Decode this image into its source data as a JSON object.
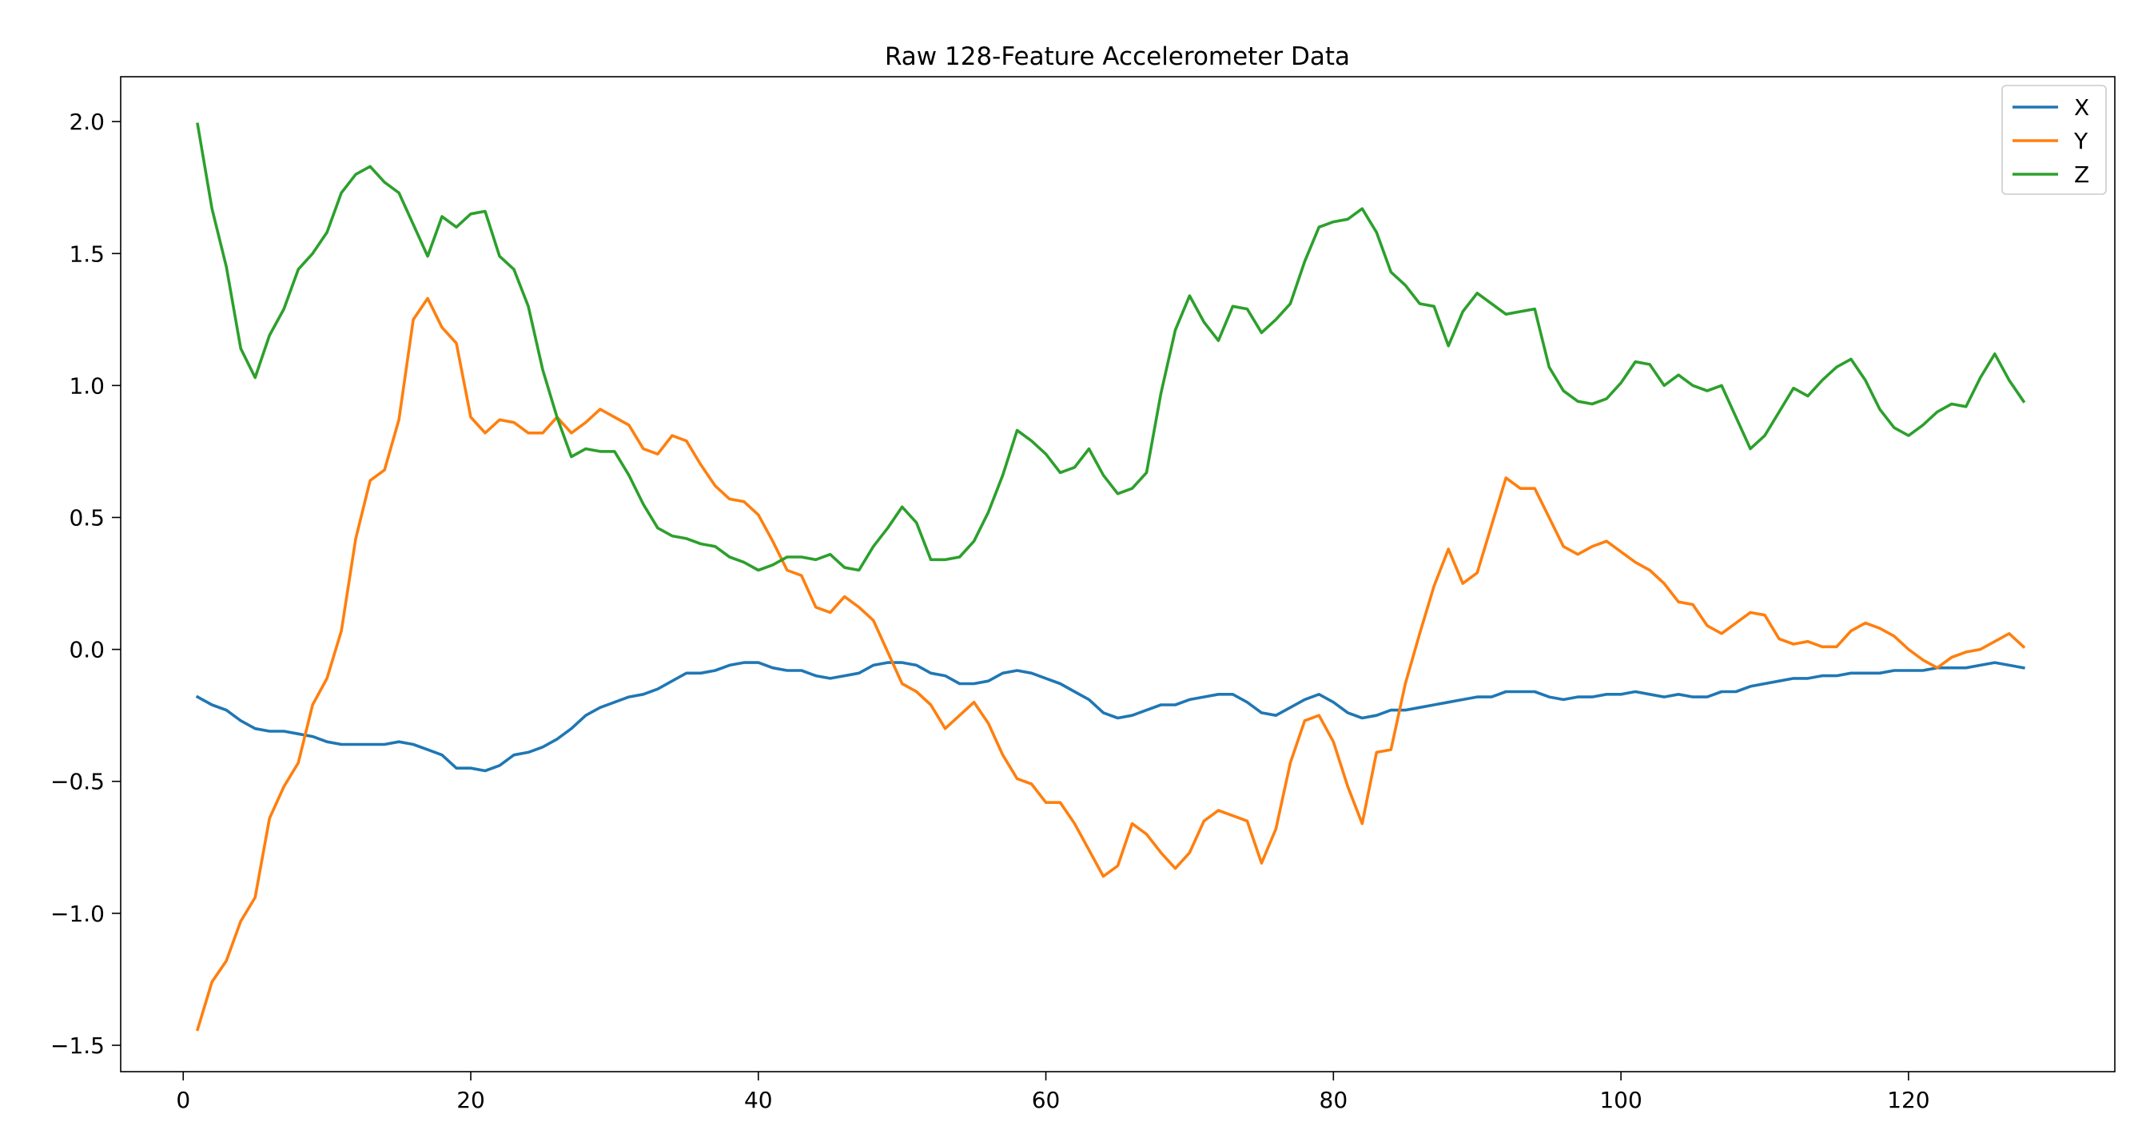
{
  "chart_data": {
    "type": "line",
    "title": "Raw 128-Feature Accelerometer Data",
    "xlabel": "",
    "ylabel": "",
    "xlim": [
      -4.35,
      134.35
    ],
    "ylim": [
      -1.6,
      2.17
    ],
    "xticks": [
      0,
      20,
      40,
      60,
      80,
      100,
      120
    ],
    "yticks": [
      -1.5,
      -1.0,
      -0.5,
      0.0,
      0.5,
      1.0,
      1.5,
      2.0
    ],
    "ytick_labels": [
      "−1.5",
      "−1.0",
      "−0.5",
      "0.0",
      "0.5",
      "1.0",
      "1.5",
      "2.0"
    ],
    "grid": false,
    "legend_position": "top-right",
    "x_start": 1,
    "series": [
      {
        "name": "X",
        "color": "#1f77b4",
        "values": [
          -0.18,
          -0.21,
          -0.23,
          -0.27,
          -0.3,
          -0.31,
          -0.31,
          -0.32,
          -0.33,
          -0.35,
          -0.36,
          -0.36,
          -0.36,
          -0.36,
          -0.35,
          -0.36,
          -0.38,
          -0.4,
          -0.45,
          -0.45,
          -0.46,
          -0.44,
          -0.4,
          -0.39,
          -0.37,
          -0.34,
          -0.3,
          -0.25,
          -0.22,
          -0.2,
          -0.18,
          -0.17,
          -0.15,
          -0.12,
          -0.09,
          -0.09,
          -0.08,
          -0.06,
          -0.05,
          -0.05,
          -0.07,
          -0.08,
          -0.08,
          -0.1,
          -0.11,
          -0.1,
          -0.09,
          -0.06,
          -0.05,
          -0.05,
          -0.06,
          -0.09,
          -0.1,
          -0.13,
          -0.13,
          -0.12,
          -0.09,
          -0.08,
          -0.09,
          -0.11,
          -0.13,
          -0.16,
          -0.19,
          -0.24,
          -0.26,
          -0.25,
          -0.23,
          -0.21,
          -0.21,
          -0.19,
          -0.18,
          -0.17,
          -0.17,
          -0.2,
          -0.24,
          -0.25,
          -0.22,
          -0.19,
          -0.17,
          -0.2,
          -0.24,
          -0.26,
          -0.25,
          -0.23,
          -0.23,
          -0.22,
          -0.21,
          -0.2,
          -0.19,
          -0.18,
          -0.18,
          -0.16,
          -0.16,
          -0.16,
          -0.18,
          -0.19,
          -0.18,
          -0.18,
          -0.17,
          -0.17,
          -0.16,
          -0.17,
          -0.18,
          -0.17,
          -0.18,
          -0.18,
          -0.16,
          -0.16,
          -0.14,
          -0.13,
          -0.12,
          -0.11,
          -0.11,
          -0.1,
          -0.1,
          -0.09,
          -0.09,
          -0.09,
          -0.08,
          -0.08,
          -0.08,
          -0.07,
          -0.07,
          -0.07,
          -0.06,
          -0.05,
          -0.06,
          -0.07
        ]
      },
      {
        "name": "Y",
        "color": "#ff7f0e",
        "values": [
          -1.44,
          -1.26,
          -1.18,
          -1.03,
          -0.94,
          -0.64,
          -0.52,
          -0.43,
          -0.21,
          -0.11,
          0.07,
          0.42,
          0.64,
          0.68,
          0.87,
          1.25,
          1.33,
          1.22,
          1.16,
          0.88,
          0.82,
          0.87,
          0.86,
          0.82,
          0.82,
          0.88,
          0.82,
          0.86,
          0.91,
          0.88,
          0.85,
          0.76,
          0.74,
          0.81,
          0.79,
          0.7,
          0.62,
          0.57,
          0.56,
          0.51,
          0.41,
          0.3,
          0.28,
          0.16,
          0.14,
          0.2,
          0.16,
          0.11,
          -0.01,
          -0.13,
          -0.16,
          -0.21,
          -0.3,
          -0.25,
          -0.2,
          -0.28,
          -0.4,
          -0.49,
          -0.51,
          -0.58,
          -0.58,
          -0.66,
          -0.76,
          -0.86,
          -0.82,
          -0.66,
          -0.7,
          -0.77,
          -0.83,
          -0.77,
          -0.65,
          -0.61,
          -0.63,
          -0.65,
          -0.81,
          -0.68,
          -0.43,
          -0.27,
          -0.25,
          -0.35,
          -0.52,
          -0.66,
          -0.39,
          -0.38,
          -0.13,
          0.06,
          0.24,
          0.38,
          0.25,
          0.29,
          0.47,
          0.65,
          0.61,
          0.61,
          0.5,
          0.39,
          0.36,
          0.39,
          0.41,
          0.37,
          0.33,
          0.3,
          0.25,
          0.18,
          0.17,
          0.09,
          0.06,
          0.1,
          0.14,
          0.13,
          0.04,
          0.02,
          0.03,
          0.01,
          0.01,
          0.07,
          0.1,
          0.08,
          0.05,
          0.0,
          -0.04,
          -0.07,
          -0.03,
          -0.01,
          0.0,
          0.03,
          0.06,
          0.01
        ]
      },
      {
        "name": "Z",
        "color": "#2ca02c",
        "values": [
          1.99,
          1.67,
          1.45,
          1.14,
          1.03,
          1.19,
          1.29,
          1.44,
          1.5,
          1.58,
          1.73,
          1.8,
          1.83,
          1.77,
          1.73,
          1.61,
          1.49,
          1.64,
          1.6,
          1.65,
          1.66,
          1.49,
          1.44,
          1.3,
          1.06,
          0.88,
          0.73,
          0.76,
          0.75,
          0.75,
          0.66,
          0.55,
          0.46,
          0.43,
          0.42,
          0.4,
          0.39,
          0.35,
          0.33,
          0.3,
          0.32,
          0.35,
          0.35,
          0.34,
          0.36,
          0.31,
          0.3,
          0.39,
          0.46,
          0.54,
          0.48,
          0.34,
          0.34,
          0.35,
          0.41,
          0.52,
          0.66,
          0.83,
          0.79,
          0.74,
          0.67,
          0.69,
          0.76,
          0.66,
          0.59,
          0.61,
          0.67,
          0.97,
          1.21,
          1.34,
          1.24,
          1.17,
          1.3,
          1.29,
          1.2,
          1.25,
          1.31,
          1.47,
          1.6,
          1.62,
          1.63,
          1.67,
          1.58,
          1.43,
          1.38,
          1.31,
          1.3,
          1.15,
          1.28,
          1.35,
          1.31,
          1.27,
          1.28,
          1.29,
          1.07,
          0.98,
          0.94,
          0.93,
          0.95,
          1.01,
          1.09,
          1.08,
          1.0,
          1.04,
          1.0,
          0.98,
          1.0,
          0.88,
          0.76,
          0.81,
          0.9,
          0.99,
          0.96,
          1.02,
          1.07,
          1.1,
          1.02,
          0.91,
          0.84,
          0.81,
          0.85,
          0.9,
          0.93,
          0.92,
          1.03,
          1.12,
          1.02,
          0.94
        ]
      }
    ]
  }
}
